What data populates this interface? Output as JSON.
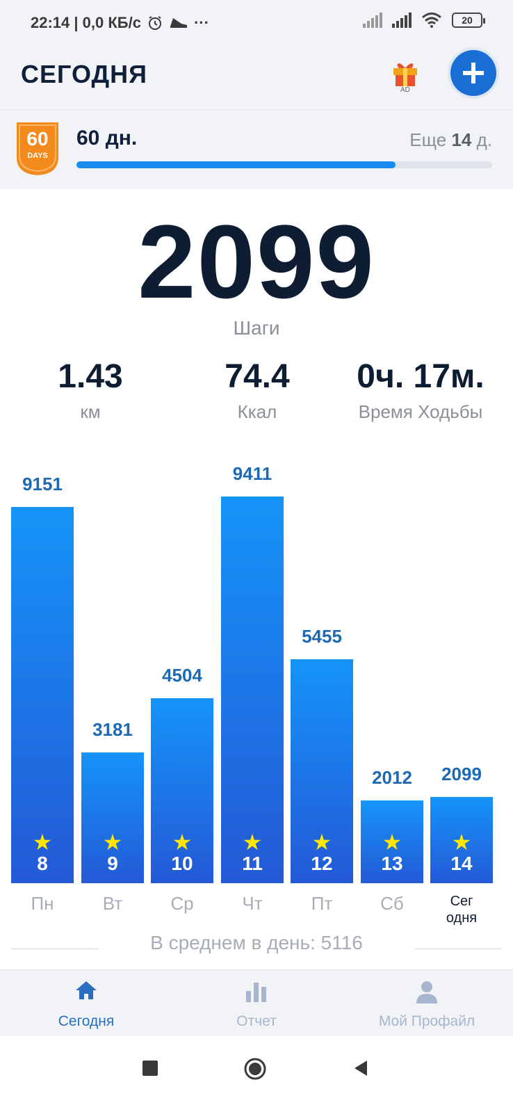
{
  "status_bar": {
    "time_speed": "22:14 | 0,0 КБ/с",
    "more": "···",
    "battery": "20"
  },
  "header": {
    "title": "СЕГОДНЯ",
    "gift_icon": "gift-ad-icon",
    "gift_badge": "AD",
    "add_icon": "plus-icon"
  },
  "streak": {
    "badge_number": "60",
    "badge_text": "DAYS",
    "label": "60 дн.",
    "remaining_prefix": "Еще",
    "remaining_value": "14",
    "remaining_suffix": "д.",
    "progress_fraction": 0.767
  },
  "today": {
    "steps": "2099",
    "steps_label": "Шаги"
  },
  "stats": [
    {
      "value": "1.43",
      "label": "км"
    },
    {
      "value": "74.4",
      "label": "Ккал"
    },
    {
      "value": "0ч. 17м.",
      "label": "Время Ходьбы"
    }
  ],
  "chart_data": {
    "type": "bar",
    "categories": [
      "Пн",
      "Вт",
      "Ср",
      "Чт",
      "Пт",
      "Сб",
      "Сег одня"
    ],
    "day_numbers": [
      "8",
      "9",
      "10",
      "11",
      "12",
      "13",
      "14"
    ],
    "values": [
      9151,
      3181,
      4504,
      9411,
      5455,
      2012,
      2099
    ],
    "value_labels": [
      "9151",
      "3181",
      "4504",
      "9411",
      "5455",
      "2012",
      "2099"
    ],
    "today_label_lines": [
      "Сег",
      "одня"
    ],
    "ylim": [
      0,
      10000
    ],
    "bar_color_top": "#1594f8",
    "bar_color_bottom": "#2459d6",
    "star_color": "#ffe600"
  },
  "average": {
    "label": "В среднем в день: 5116"
  },
  "bottom_nav": [
    {
      "label": "Сегодня",
      "icon": "home-icon",
      "active": true
    },
    {
      "label": "Отчет",
      "icon": "bar-chart-icon",
      "active": false
    },
    {
      "label": "Мой Профайл",
      "icon": "profile-icon",
      "active": false
    }
  ],
  "colors": {
    "accent": "#1a6fd6",
    "progress": "#1a8cf0",
    "badge": "#f28a1c"
  }
}
